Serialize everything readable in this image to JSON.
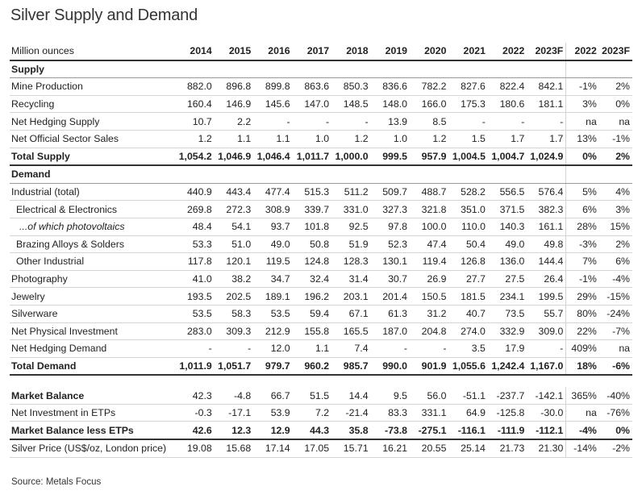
{
  "title": "Silver Supply and Demand",
  "header": [
    "Million ounces",
    "2014",
    "2015",
    "2016",
    "2017",
    "2018",
    "2019",
    "2020",
    "2021",
    "2022",
    "2023F",
    "2022",
    "2023F"
  ],
  "sections": [
    {
      "title": "Supply",
      "rows": [
        [
          "Mine Production",
          "882.0",
          "896.8",
          "899.8",
          "863.6",
          "850.3",
          "836.6",
          "782.2",
          "827.6",
          "822.4",
          "842.1",
          "-1%",
          "2%"
        ],
        [
          "Recycling",
          "160.4",
          "146.9",
          "145.6",
          "147.0",
          "148.5",
          "148.0",
          "166.0",
          "175.3",
          "180.6",
          "181.1",
          "3%",
          "0%"
        ],
        [
          "Net Hedging Supply",
          "10.7",
          "2.2",
          "-",
          "-",
          "-",
          "13.9",
          "8.5",
          "-",
          "-",
          "-",
          "na",
          "na"
        ],
        [
          "Net Official Sector Sales",
          "1.2",
          "1.1",
          "1.1",
          "1.0",
          "1.2",
          "1.0",
          "1.2",
          "1.5",
          "1.7",
          "1.7",
          "13%",
          "-1%"
        ]
      ],
      "total": [
        "Total Supply",
        "1,054.2",
        "1,046.9",
        "1,046.4",
        "1,011.7",
        "1,000.0",
        "999.5",
        "957.9",
        "1,004.5",
        "1,004.7",
        "1,024.9",
        "0%",
        "2%"
      ]
    },
    {
      "title": "Demand",
      "rows": [
        [
          "Industrial (total)",
          "440.9",
          "443.4",
          "477.4",
          "515.3",
          "511.2",
          "509.7",
          "488.7",
          "528.2",
          "556.5",
          "576.4",
          "5%",
          "4%"
        ],
        [
          "Electrical & Electronics",
          "269.8",
          "272.3",
          "308.9",
          "339.7",
          "331.0",
          "327.3",
          "321.8",
          "351.0",
          "371.5",
          "382.3",
          "6%",
          "3%"
        ],
        [
          "...of which photovoltaics",
          "48.4",
          "54.1",
          "93.7",
          "101.8",
          "92.5",
          "97.8",
          "100.0",
          "110.0",
          "140.3",
          "161.1",
          "28%",
          "15%"
        ],
        [
          "Brazing Alloys & Solders",
          "53.3",
          "51.0",
          "49.0",
          "50.8",
          "51.9",
          "52.3",
          "47.4",
          "50.4",
          "49.0",
          "49.8",
          "-3%",
          "2%"
        ],
        [
          "Other Industrial",
          "117.8",
          "120.1",
          "119.5",
          "124.8",
          "128.3",
          "130.1",
          "119.4",
          "126.8",
          "136.0",
          "144.4",
          "7%",
          "6%"
        ],
        [
          "Photography",
          "41.0",
          "38.2",
          "34.7",
          "32.4",
          "31.4",
          "30.7",
          "26.9",
          "27.7",
          "27.5",
          "26.4",
          "-1%",
          "-4%"
        ],
        [
          "Jewelry",
          "193.5",
          "202.5",
          "189.1",
          "196.2",
          "203.1",
          "201.4",
          "150.5",
          "181.5",
          "234.1",
          "199.5",
          "29%",
          "-15%"
        ],
        [
          "Silverware",
          "53.5",
          "58.3",
          "53.5",
          "59.4",
          "67.1",
          "61.3",
          "31.2",
          "40.7",
          "73.5",
          "55.7",
          "80%",
          "-24%"
        ],
        [
          "Net Physical Investment",
          "283.0",
          "309.3",
          "212.9",
          "155.8",
          "165.5",
          "187.0",
          "204.8",
          "274.0",
          "332.9",
          "309.0",
          "22%",
          "-7%"
        ],
        [
          "Net Hedging Demand",
          "-",
          "-",
          "12.0",
          "1.1",
          "7.4",
          "-",
          "-",
          "3.5",
          "17.9",
          "-",
          "409%",
          "na"
        ]
      ],
      "total": [
        "Total Demand",
        "1,011.9",
        "1,051.7",
        "979.7",
        "960.2",
        "985.7",
        "990.0",
        "901.9",
        "1,055.6",
        "1,242.4",
        "1,167.0",
        "18%",
        "-6%"
      ]
    }
  ],
  "balance": [
    [
      "Market Balance",
      "42.3",
      "-4.8",
      "66.7",
      "51.5",
      "14.4",
      "9.5",
      "56.0",
      "-51.1",
      "-237.7",
      "-142.1",
      "365%",
      "-40%"
    ],
    [
      "Net Investment in ETPs",
      "-0.3",
      "-17.1",
      "53.9",
      "7.2",
      "-21.4",
      "83.3",
      "331.1",
      "64.9",
      "-125.8",
      "-30.0",
      "na",
      "-76%"
    ],
    [
      "Market Balance less ETPs",
      "42.6",
      "12.3",
      "12.9",
      "44.3",
      "35.8",
      "-73.8",
      "-275.1",
      "-116.1",
      "-111.9",
      "-112.1",
      "-4%",
      "0%"
    ],
    [
      "Silver Price (US$/oz, London price)",
      "19.08",
      "15.68",
      "17.14",
      "17.05",
      "15.71",
      "16.21",
      "20.55",
      "25.14",
      "21.73",
      "21.30",
      "-14%",
      "-2%"
    ]
  ],
  "source": "Source: Metals Focus"
}
